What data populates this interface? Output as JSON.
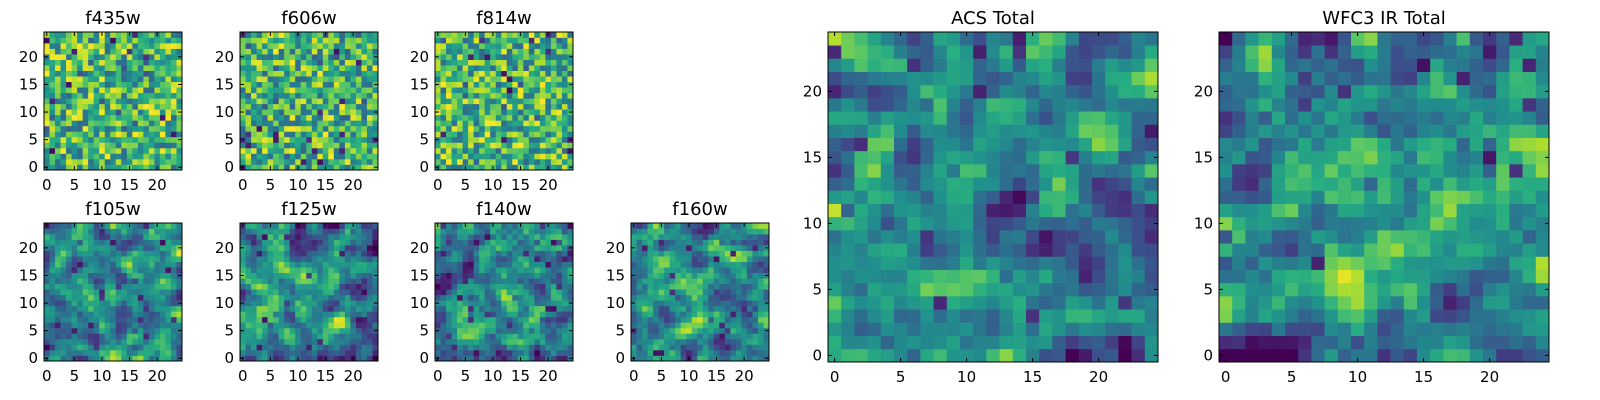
{
  "chart_data": [
    {
      "type": "heatmap",
      "title": "f435w",
      "rows": 25,
      "cols": 25,
      "xticks": [
        "0",
        "5",
        "10",
        "15",
        "20"
      ],
      "yticks": [
        "0",
        "5",
        "10",
        "15",
        "20"
      ],
      "xlim": [
        -0.5,
        24.5
      ],
      "ylim": [
        -0.5,
        24.5
      ],
      "colormap": "viridis",
      "density": "fine",
      "seed": 11
    },
    {
      "type": "heatmap",
      "title": "f606w",
      "rows": 25,
      "cols": 25,
      "xticks": [
        "0",
        "5",
        "10",
        "15",
        "20"
      ],
      "yticks": [
        "0",
        "5",
        "10",
        "15",
        "20"
      ],
      "xlim": [
        -0.5,
        24.5
      ],
      "ylim": [
        -0.5,
        24.5
      ],
      "colormap": "viridis",
      "density": "fine",
      "seed": 23
    },
    {
      "type": "heatmap",
      "title": "f814w",
      "rows": 25,
      "cols": 25,
      "xticks": [
        "0",
        "5",
        "10",
        "15",
        "20"
      ],
      "yticks": [
        "0",
        "5",
        "10",
        "15",
        "20"
      ],
      "xlim": [
        -0.5,
        24.5
      ],
      "ylim": [
        -0.5,
        24.5
      ],
      "colormap": "viridis",
      "density": "fine",
      "seed": 37
    },
    {
      "type": "heatmap",
      "title": "f105w",
      "rows": 25,
      "cols": 25,
      "xticks": [
        "0",
        "5",
        "10",
        "15",
        "20"
      ],
      "yticks": [
        "0",
        "5",
        "10",
        "15",
        "20"
      ],
      "xlim": [
        -0.5,
        24.5
      ],
      "ylim": [
        -0.5,
        24.5
      ],
      "colormap": "viridis",
      "density": "smooth",
      "seed": 41
    },
    {
      "type": "heatmap",
      "title": "f125w",
      "rows": 25,
      "cols": 25,
      "xticks": [
        "0",
        "5",
        "10",
        "15",
        "20"
      ],
      "yticks": [
        "0",
        "5",
        "10",
        "15",
        "20"
      ],
      "xlim": [
        -0.5,
        24.5
      ],
      "ylim": [
        -0.5,
        24.5
      ],
      "colormap": "viridis",
      "density": "smooth",
      "seed": 53
    },
    {
      "type": "heatmap",
      "title": "f140w",
      "rows": 25,
      "cols": 25,
      "xticks": [
        "0",
        "5",
        "10",
        "15",
        "20"
      ],
      "yticks": [
        "0",
        "5",
        "10",
        "15",
        "20"
      ],
      "xlim": [
        -0.5,
        24.5
      ],
      "ylim": [
        -0.5,
        24.5
      ],
      "colormap": "viridis",
      "density": "smooth",
      "seed": 67
    },
    {
      "type": "heatmap",
      "title": "f160w",
      "rows": 25,
      "cols": 25,
      "xticks": [
        "0",
        "5",
        "10",
        "15",
        "20"
      ],
      "yticks": [
        "0",
        "5",
        "10",
        "15",
        "20"
      ],
      "xlim": [
        -0.5,
        24.5
      ],
      "ylim": [
        -0.5,
        24.5
      ],
      "colormap": "viridis",
      "density": "smooth",
      "seed": 71
    },
    {
      "type": "heatmap",
      "title": "ACS Total",
      "rows": 25,
      "cols": 25,
      "xticks": [
        "0",
        "5",
        "10",
        "15",
        "20"
      ],
      "yticks": [
        "0",
        "5",
        "10",
        "15",
        "20"
      ],
      "xlim": [
        -0.5,
        24.5
      ],
      "ylim": [
        -0.5,
        24.5
      ],
      "colormap": "viridis",
      "density": "coarse",
      "seed": 83
    },
    {
      "type": "heatmap",
      "title": "WFC3 IR Total",
      "rows": 25,
      "cols": 25,
      "xticks": [
        "0",
        "5",
        "10",
        "15",
        "20"
      ],
      "yticks": [
        "0",
        "5",
        "10",
        "15",
        "20"
      ],
      "xlim": [
        -0.5,
        24.5
      ],
      "ylim": [
        -0.5,
        24.5
      ],
      "colormap": "viridis",
      "density": "coarse",
      "seed": 97
    }
  ]
}
